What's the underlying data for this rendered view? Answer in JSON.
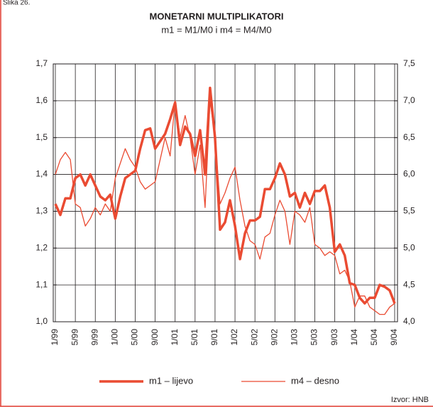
{
  "chart_data": {
    "type": "line",
    "figure_label": "Slika 26.",
    "title": "MONETARNI MULTIPLIKATORI",
    "subtitle": "m1 = M1/M0 i m4 = M4/M0",
    "source": "Izvor: HNB",
    "categories": [
      "1/99",
      null,
      null,
      null,
      "5/99",
      null,
      null,
      null,
      "9/99",
      null,
      null,
      null,
      "1/00",
      null,
      null,
      null,
      "5/00",
      null,
      null,
      null,
      "9/00",
      null,
      null,
      null,
      "1/01",
      null,
      null,
      null,
      "5/01",
      null,
      null,
      null,
      "9/01",
      null,
      null,
      null,
      "1/02",
      null,
      null,
      null,
      "5/02",
      null,
      null,
      null,
      "9/02",
      null,
      null,
      null,
      "1/03",
      null,
      null,
      null,
      "5/03",
      null,
      null,
      null,
      "9/03",
      null,
      null,
      null,
      "1/04",
      null,
      null,
      null,
      "5/04",
      null,
      null,
      null,
      "9/04"
    ],
    "series": [
      {
        "name": "m1 – lijevo",
        "color": "#ea4b32",
        "width": 3.5,
        "axis": "y",
        "values": [
          1.32,
          1.29,
          1.335,
          1.335,
          1.39,
          1.4,
          1.37,
          1.4,
          1.37,
          1.34,
          1.33,
          1.345,
          1.28,
          1.34,
          1.39,
          1.4,
          1.41,
          1.47,
          1.52,
          1.525,
          1.47,
          1.49,
          1.51,
          1.55,
          1.595,
          1.48,
          1.53,
          1.51,
          1.45,
          1.52,
          1.4,
          1.635,
          1.5,
          1.25,
          1.27,
          1.33,
          1.26,
          1.17,
          1.24,
          1.275,
          1.275,
          1.285,
          1.36,
          1.36,
          1.39,
          1.43,
          1.4,
          1.34,
          1.35,
          1.31,
          1.35,
          1.32,
          1.355,
          1.355,
          1.37,
          1.31,
          1.19,
          1.21,
          1.18,
          1.105,
          1.1,
          1.065,
          1.05,
          1.065,
          1.065,
          1.1,
          1.095,
          1.085,
          1.05
        ]
      },
      {
        "name": "m4 – desno",
        "color": "#ea4b32",
        "width": 1.3,
        "axis": "y2",
        "values": [
          6.0,
          6.2,
          6.3,
          6.2,
          5.6,
          5.55,
          5.3,
          5.4,
          5.55,
          5.45,
          5.6,
          5.5,
          5.95,
          6.15,
          6.35,
          6.2,
          6.1,
          5.9,
          5.8,
          5.85,
          5.9,
          6.2,
          6.5,
          6.25,
          7.0,
          6.5,
          6.8,
          6.5,
          6.0,
          6.4,
          5.55,
          7.0,
          6.5,
          5.6,
          5.75,
          5.95,
          6.1,
          5.65,
          5.3,
          5.1,
          5.05,
          4.85,
          5.15,
          5.2,
          5.45,
          5.65,
          5.5,
          5.05,
          5.5,
          5.45,
          5.35,
          5.55,
          5.05,
          5.0,
          4.9,
          4.95,
          4.9,
          4.65,
          4.7,
          4.55,
          4.2,
          4.35,
          4.35,
          4.2,
          4.15,
          4.1,
          4.1,
          4.2,
          4.25
        ]
      }
    ],
    "ylim": [
      1.0,
      1.7
    ],
    "yticks": [
      {
        "value": 1.0,
        "label": "1,0"
      },
      {
        "value": 1.1,
        "label": "1,1"
      },
      {
        "value": 1.2,
        "label": "1,2"
      },
      {
        "value": 1.3,
        "label": "1,3"
      },
      {
        "value": 1.4,
        "label": "1,4"
      },
      {
        "value": 1.5,
        "label": "1,5"
      },
      {
        "value": 1.6,
        "label": "1,6"
      },
      {
        "value": 1.7,
        "label": "1,7"
      }
    ],
    "y2lim": [
      4.0,
      7.5
    ],
    "y2ticks": [
      {
        "value": 4.0,
        "label": "4,0"
      },
      {
        "value": 4.5,
        "label": "4,5"
      },
      {
        "value": 5.0,
        "label": "5,0"
      },
      {
        "value": 5.5,
        "label": "5,5"
      },
      {
        "value": 6.0,
        "label": "6,0"
      },
      {
        "value": 6.5,
        "label": "6,5"
      },
      {
        "value": 7.0,
        "label": "7,0"
      },
      {
        "value": 7.5,
        "label": "7,5"
      }
    ],
    "grid": true
  }
}
